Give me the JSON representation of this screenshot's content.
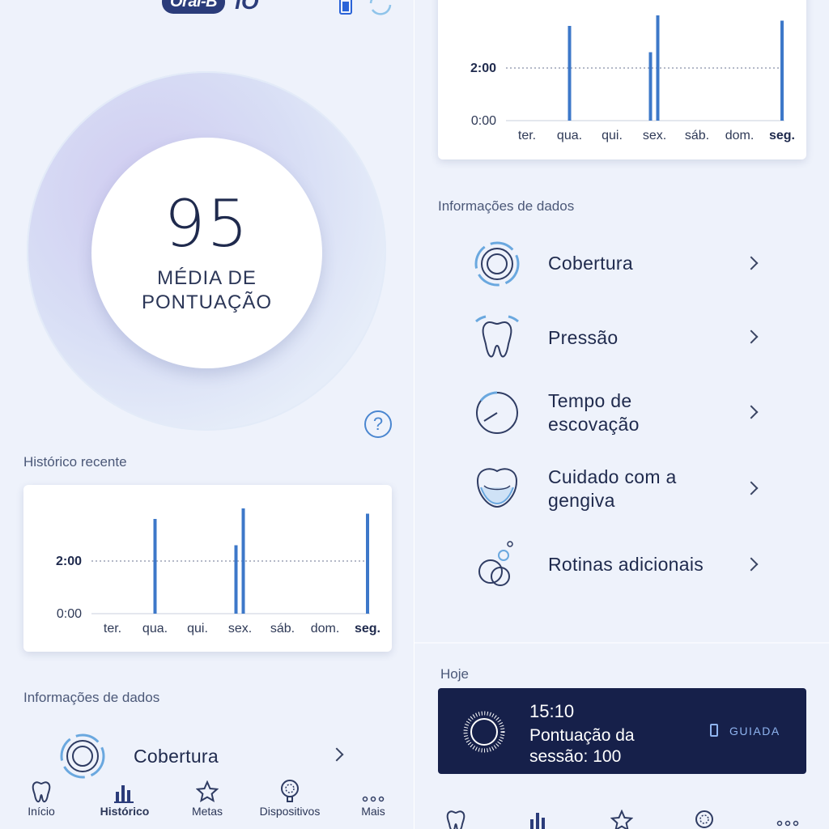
{
  "header": {
    "brand": "Oral-B",
    "product": "iO"
  },
  "score": {
    "value": "95",
    "label_line1": "MÉDIA DE",
    "label_line2": "PONTUAÇÃO"
  },
  "help_label": "?",
  "recent_history": {
    "title": "Histórico recente"
  },
  "chart_data": {
    "type": "bar",
    "categories": [
      "ter.",
      "qua.",
      "qui.",
      "sex.",
      "sáb.",
      "dom.",
      "seg."
    ],
    "highlight_category": "seg.",
    "y_ticks": [
      "0:00",
      "2:00"
    ],
    "reference_line": "2:00",
    "sessions": [
      {
        "day": "qua.",
        "minutes": 3.6
      },
      {
        "day": "sex.",
        "minutes": 2.6
      },
      {
        "day": "sex.",
        "minutes": 4.0
      },
      {
        "day": "seg.",
        "minutes": 3.8
      }
    ],
    "ylim": [
      0,
      4.2
    ],
    "bar_color": "#3d78c9"
  },
  "data_info": {
    "title": "Informações de dados"
  },
  "metrics": [
    {
      "icon": "coverage-icon",
      "line1": "Cobertura",
      "line2": ""
    },
    {
      "icon": "tooth-pressure-icon",
      "line1": "Pressão",
      "line2": ""
    },
    {
      "icon": "timer-icon",
      "line1": "Tempo de",
      "line2": "escovação"
    },
    {
      "icon": "gum-care-icon",
      "line1": "Cuidado com a",
      "line2": "gengiva"
    },
    {
      "icon": "bubbles-icon",
      "line1": "Rotinas adicionais",
      "line2": ""
    }
  ],
  "today": {
    "title": "Hoje",
    "time": "15:10",
    "desc_line1": "Pontuação da",
    "desc_line2": "sessão: 100",
    "mode": "GUIADA"
  },
  "nav": [
    {
      "icon": "tooth-icon",
      "label": "Início"
    },
    {
      "icon": "bar-chart-icon",
      "label": "Histórico"
    },
    {
      "icon": "star-icon",
      "label": "Metas"
    },
    {
      "icon": "brush-head-icon",
      "label": "Dispositivos"
    },
    {
      "icon": "more-icon",
      "label": "Mais"
    }
  ],
  "nav_active": "Histórico",
  "colors": {
    "primary": "#2b3c7a",
    "accent": "#3d78c9",
    "background": "#eef2fb",
    "dark_card": "#16204a"
  }
}
